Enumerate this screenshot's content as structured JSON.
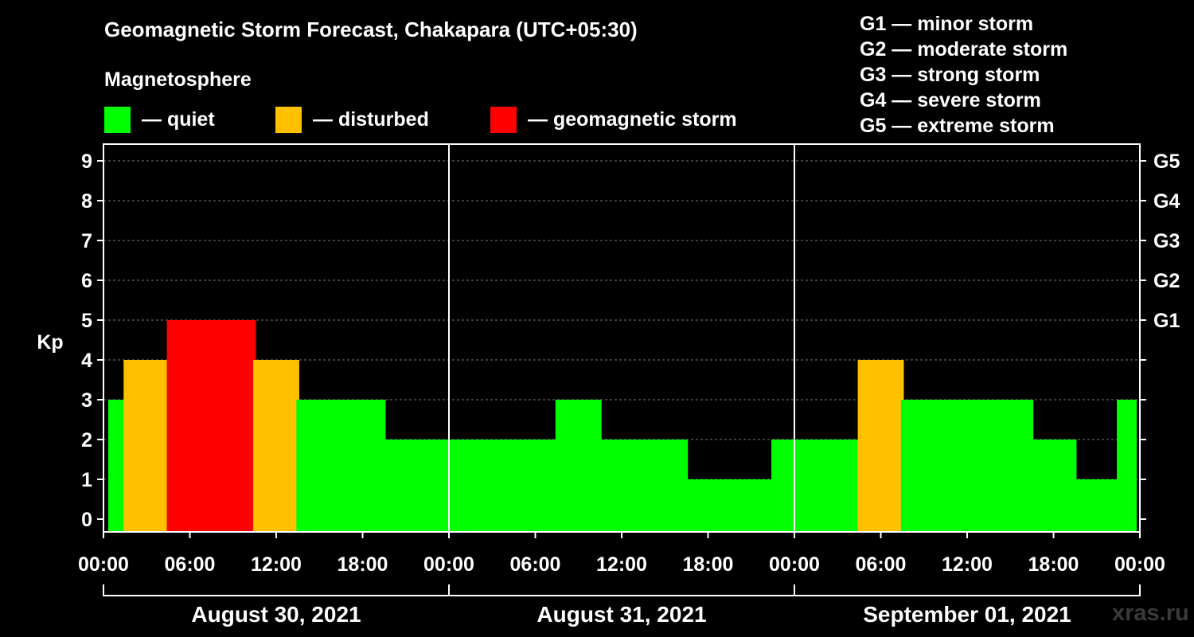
{
  "title": "Geomagnetic Storm Forecast, Chakapara (UTC+05:30)",
  "subtitle": "Magnetosphere",
  "legend": [
    {
      "label": "— quiet",
      "color": "#00ff00"
    },
    {
      "label": "— disturbed",
      "color": "#ffc000"
    },
    {
      "label": "— geomagnetic storm",
      "color": "#ff0000"
    }
  ],
  "storm_levels": [
    "G1 — minor storm",
    "G2 — moderate storm",
    "G3 — strong storm",
    "G4 — severe storm",
    "G5 — extreme storm"
  ],
  "watermark": "xras.ru",
  "chart_data": {
    "type": "bar",
    "ylabel": "Kp",
    "ylim": [
      0,
      9
    ],
    "y_ticks": [
      "0",
      "1",
      "2",
      "3",
      "4",
      "5",
      "6",
      "7",
      "8",
      "9"
    ],
    "right_ticks": [
      {
        "value": 5,
        "label": "G1"
      },
      {
        "value": 6,
        "label": "G2"
      },
      {
        "value": 7,
        "label": "G3"
      },
      {
        "value": 8,
        "label": "G4"
      },
      {
        "value": 9,
        "label": "G5"
      }
    ],
    "x_tick_labels": [
      "00:00",
      "06:00",
      "12:00",
      "18:00",
      "00:00",
      "06:00",
      "12:00",
      "18:00",
      "00:00",
      "06:00",
      "12:00",
      "18:00",
      "00:00"
    ],
    "days": [
      "August 30, 2021",
      "August 31, 2021",
      "September 01, 2021"
    ],
    "colors": {
      "quiet": "#00ff00",
      "disturbed": "#ffc000",
      "storm": "#ff0000"
    },
    "values": [
      3,
      4,
      5,
      5,
      4,
      3,
      3,
      2,
      2,
      2,
      2,
      3,
      2,
      2,
      1,
      1,
      2,
      2,
      4,
      3,
      3,
      3,
      2,
      1,
      3
    ],
    "grid": true
  }
}
